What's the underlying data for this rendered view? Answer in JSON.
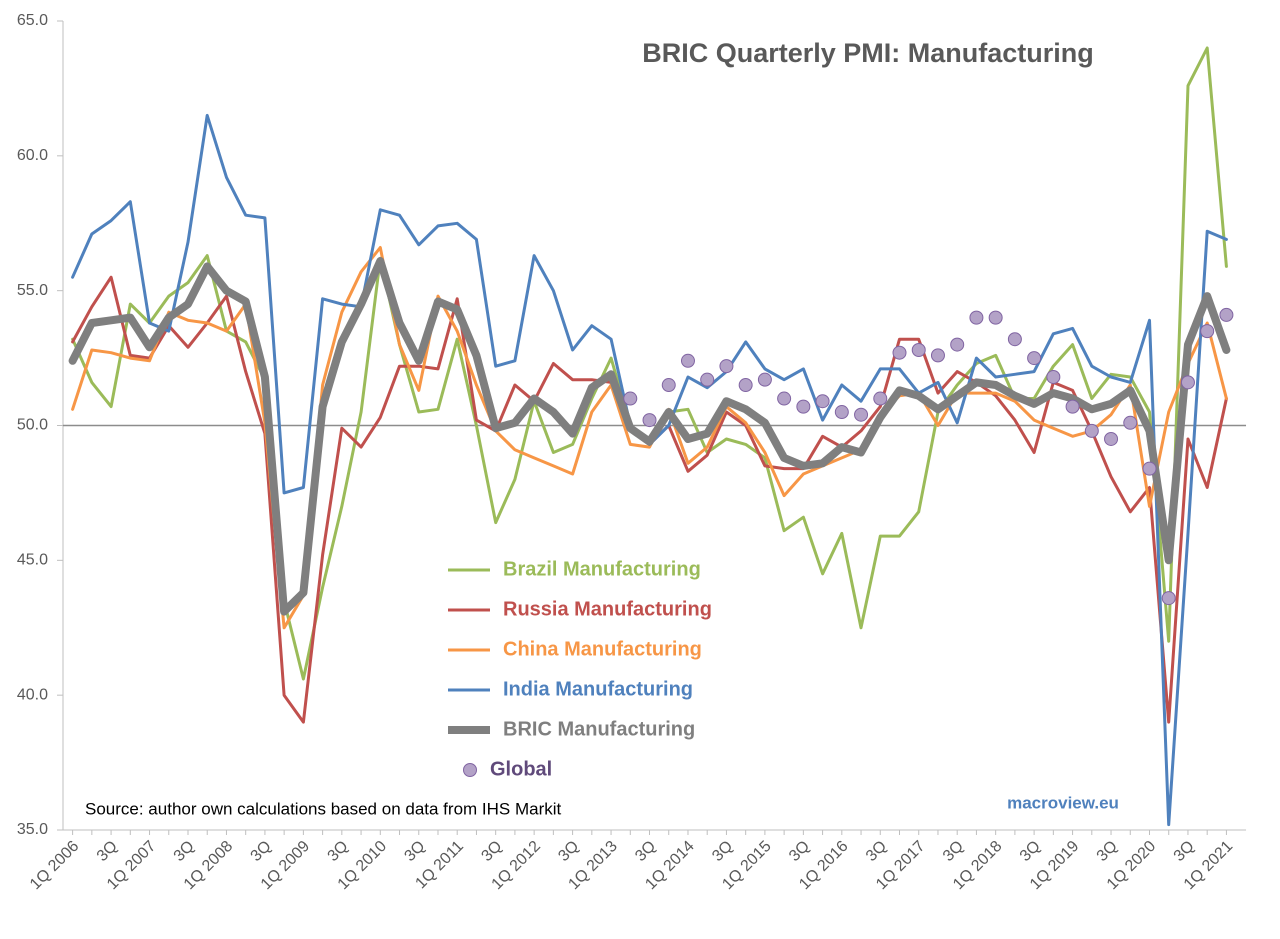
{
  "chart_data": {
    "type": "line",
    "title": "BRIC Quarterly PMI: Manufacturing",
    "source": "Source: author own calculations based on data from IHS Markit",
    "watermark": "macroview.eu",
    "categories": [
      "1Q 2006",
      null,
      "3Q",
      null,
      "1Q 2007",
      null,
      "3Q",
      null,
      "1Q 2008",
      null,
      "3Q",
      null,
      "1Q 2009",
      null,
      "3Q",
      null,
      "1Q 2010",
      null,
      "3Q",
      null,
      "1Q 2011",
      null,
      "3Q",
      null,
      "1Q 2012",
      null,
      "3Q",
      null,
      "1Q 2013",
      null,
      "3Q",
      null,
      "1Q 2014",
      null,
      "3Q",
      null,
      "1Q 2015",
      null,
      "3Q",
      null,
      "1Q 2016",
      null,
      "3Q",
      null,
      "1Q 2017",
      null,
      "3Q",
      null,
      "1Q 2018",
      null,
      "3Q",
      null,
      "1Q 2019",
      null,
      "3Q",
      null,
      "1Q 2020",
      null,
      "3Q",
      null,
      "1Q 2021"
    ],
    "ylim": [
      35,
      65
    ],
    "yticks": [
      {
        "value": 35,
        "label": "35.0"
      },
      {
        "value": 40,
        "label": "40.0"
      },
      {
        "value": 45,
        "label": "45.0"
      },
      {
        "value": 50,
        "label": "50.0"
      },
      {
        "value": 55,
        "label": "55.0"
      },
      {
        "value": 60,
        "label": "60.0"
      },
      {
        "value": 65,
        "label": "65.0"
      }
    ],
    "reference_line": 50,
    "series": [
      {
        "name": "Brazil Manufacturing",
        "color": "#9bbb59",
        "values": [
          53.2,
          51.6,
          50.7,
          54.5,
          53.8,
          54.8,
          55.3,
          56.3,
          53.5,
          53.1,
          51.7,
          43.5,
          40.6,
          44.0,
          47.0,
          50.5,
          56.2,
          53.0,
          50.5,
          50.6,
          53.2,
          50.0,
          46.4,
          48.0,
          50.9,
          49.0,
          49.3,
          51.0,
          52.5,
          50.0,
          49.3,
          50.5,
          50.6,
          49.0,
          49.5,
          49.3,
          48.8,
          46.1,
          46.6,
          44.5,
          46.0,
          42.5,
          45.9,
          45.9,
          46.8,
          50.5,
          51.5,
          52.3,
          52.6,
          51.0,
          51.0,
          52.2,
          53.0,
          51.0,
          51.9,
          51.8,
          50.5,
          42.0,
          62.6,
          64.0,
          55.9
        ]
      },
      {
        "name": "Russia Manufacturing",
        "color": "#c0504d",
        "values": [
          53.1,
          54.4,
          55.5,
          52.6,
          52.5,
          53.7,
          52.9,
          53.8,
          54.8,
          52.0,
          49.7,
          40.0,
          39.0,
          45.2,
          49.9,
          49.2,
          50.3,
          52.2,
          52.2,
          52.1,
          54.7,
          50.2,
          49.8,
          51.5,
          50.9,
          52.3,
          51.7,
          51.7,
          51.6,
          49.9,
          49.3,
          50.0,
          48.3,
          48.9,
          50.5,
          50.0,
          48.5,
          48.4,
          48.4,
          49.6,
          49.2,
          49.8,
          50.7,
          53.2,
          53.2,
          51.2,
          52.0,
          51.6,
          51.1,
          50.2,
          49.0,
          51.6,
          51.3,
          49.8,
          48.1,
          46.8,
          47.7,
          39.0,
          49.5,
          47.7,
          51.0
        ]
      },
      {
        "name": "China Manufacturing",
        "color": "#f79646",
        "values": [
          50.6,
          52.8,
          52.7,
          52.5,
          52.4,
          54.2,
          53.9,
          53.8,
          53.5,
          54.5,
          50.1,
          42.5,
          43.7,
          51.5,
          54.2,
          55.7,
          56.6,
          53.0,
          51.3,
          54.8,
          53.5,
          51.5,
          49.8,
          49.1,
          48.8,
          48.5,
          48.2,
          50.5,
          51.5,
          49.3,
          49.2,
          50.6,
          48.6,
          49.2,
          50.7,
          50.1,
          49.0,
          47.4,
          48.2,
          48.5,
          48.8,
          49.1,
          50.4,
          51.1,
          51.2,
          50.0,
          51.2,
          51.2,
          51.2,
          50.9,
          50.2,
          49.9,
          49.6,
          49.8,
          50.4,
          51.5,
          47.0,
          50.5,
          52.3,
          53.8,
          51.0
        ]
      },
      {
        "name": "India Manufacturing",
        "color": "#4f81bd",
        "values": [
          55.5,
          57.1,
          57.6,
          58.3,
          53.8,
          53.5,
          56.8,
          61.5,
          59.2,
          57.8,
          57.7,
          47.5,
          47.7,
          54.7,
          54.5,
          54.4,
          58.0,
          57.8,
          56.7,
          57.4,
          57.5,
          56.9,
          52.2,
          52.4,
          56.3,
          55.0,
          52.8,
          53.7,
          53.2,
          50.0,
          49.3,
          50.0,
          51.8,
          51.4,
          52.0,
          53.1,
          52.1,
          51.7,
          52.1,
          50.2,
          51.5,
          50.9,
          52.1,
          52.1,
          51.2,
          51.6,
          50.1,
          52.5,
          51.8,
          51.9,
          52.0,
          53.4,
          53.6,
          52.2,
          51.8,
          51.6,
          53.9,
          35.2,
          46.0,
          57.2,
          56.9
        ]
      },
      {
        "name": "BRIC Manufacturing",
        "color": "#7f7f7f",
        "width": 8,
        "values": [
          52.4,
          53.8,
          53.9,
          54.0,
          52.9,
          54.0,
          54.5,
          55.9,
          55.0,
          54.6,
          51.8,
          43.1,
          43.8,
          50.7,
          53.1,
          54.5,
          56.1,
          53.8,
          52.4,
          54.6,
          54.3,
          52.6,
          49.9,
          50.1,
          51.0,
          50.5,
          49.7,
          51.4,
          51.9,
          49.9,
          49.4,
          50.5,
          49.5,
          49.7,
          50.9,
          50.6,
          50.1,
          48.8,
          48.5,
          48.6,
          49.2,
          49.0,
          50.3,
          51.3,
          51.1,
          50.6,
          51.1,
          51.6,
          51.5,
          51.1,
          50.8,
          51.2,
          51.0,
          50.6,
          50.8,
          51.3,
          49.8,
          45.0,
          53.0,
          54.8,
          52.8
        ]
      },
      {
        "name": "Global",
        "color": "#b3a2c7",
        "marker": true,
        "values": [
          null,
          null,
          null,
          null,
          null,
          null,
          null,
          null,
          null,
          null,
          null,
          null,
          null,
          null,
          null,
          null,
          null,
          null,
          null,
          null,
          null,
          null,
          null,
          null,
          null,
          null,
          null,
          null,
          null,
          51.0,
          50.2,
          51.5,
          52.4,
          51.7,
          52.2,
          51.5,
          51.7,
          51.0,
          50.7,
          50.9,
          50.5,
          50.4,
          51.0,
          52.7,
          52.8,
          52.6,
          53.0,
          54.0,
          54.0,
          53.2,
          52.5,
          51.8,
          50.7,
          49.8,
          49.5,
          50.1,
          48.4,
          43.6,
          51.6,
          53.5,
          54.1
        ]
      }
    ]
  }
}
